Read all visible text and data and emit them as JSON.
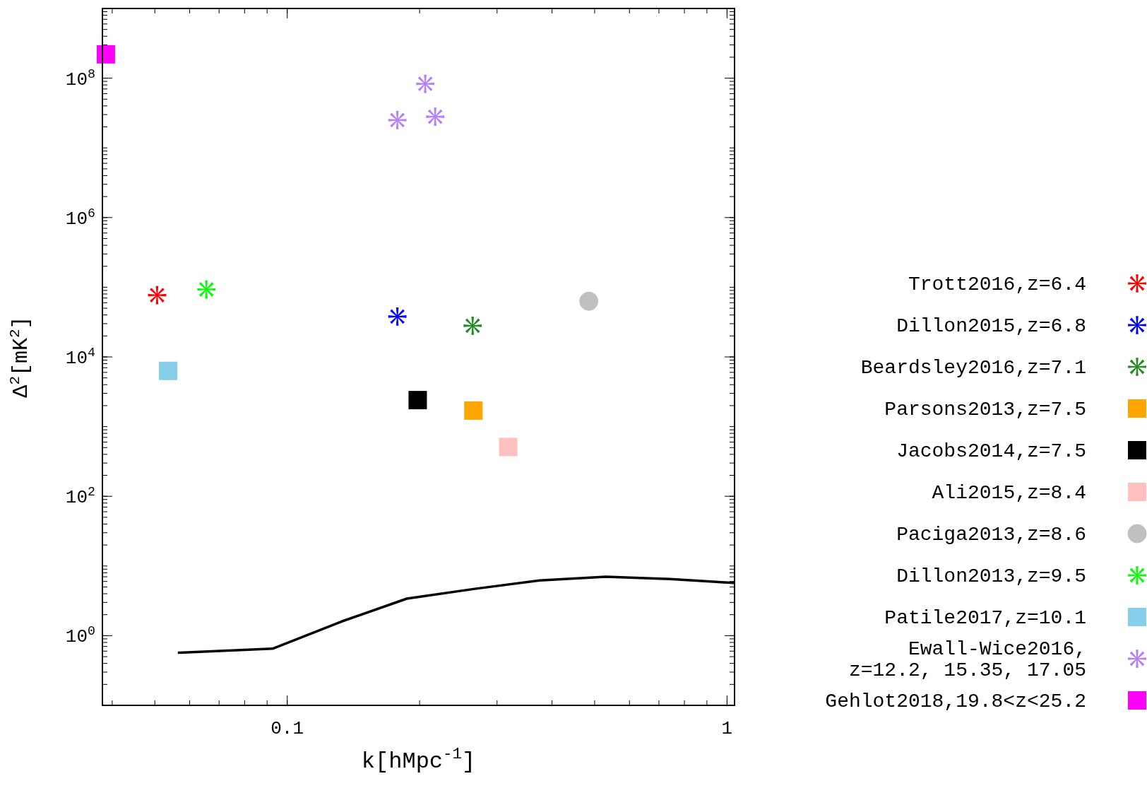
{
  "chart_data": {
    "type": "scatter",
    "xlabel": "k[hMpc$^{-1}$]",
    "ylabel": "Δ$^{2}$[mK$^{2}$]",
    "log": "xy",
    "xlim": [
      0.038,
      1.04
    ],
    "ylim": [
      0.1,
      1000000000
    ],
    "xticks": [
      0.1,
      1
    ],
    "yticks": [
      {
        "value": 1,
        "label": "10$^{0}$"
      },
      {
        "value": 100,
        "label": "10$^{2}$"
      },
      {
        "value": 10000,
        "label": "10$^{4}$"
      },
      {
        "value": 1000000,
        "label": "10$^{6}$"
      },
      {
        "value": 100000000,
        "label": "10$^{8}$"
      }
    ],
    "grid": false,
    "legend": "right",
    "series": [
      {
        "name": "Trott2016,z=6.4",
        "color": "#ff0000",
        "marker": "cross",
        "x": [
          0.0506
        ],
        "values": [
          77000
        ]
      },
      {
        "name": "Dillon2015,z=6.8",
        "color": "#0000ff",
        "marker": "cross",
        "x": [
          0.178
        ],
        "values": [
          38000
        ]
      },
      {
        "name": "Beardsley2016,z=7.1",
        "color": "#228b22",
        "marker": "cross",
        "x": [
          0.264
        ],
        "values": [
          28000
        ]
      },
      {
        "name": "Parsons2013,z=7.5",
        "color": "#ffa500",
        "marker": "square",
        "x": [
          0.265
        ],
        "values": [
          1700
        ]
      },
      {
        "name": "Jacobs2014,z=7.5",
        "color": "#000000",
        "marker": "square",
        "x": [
          0.198
        ],
        "values": [
          2400
        ]
      },
      {
        "name": "Ali2015,z=8.4",
        "color": "#ffc0c0",
        "marker": "square",
        "x": [
          0.318
        ],
        "values": [
          510
        ]
      },
      {
        "name": "Paciga2013,z=8.6",
        "color": "#c0c0c0",
        "marker": "circle",
        "x": [
          0.485
        ],
        "values": [
          63000
        ]
      },
      {
        "name": "Dillon2013,z=9.5",
        "color": "#00ff00",
        "marker": "cross",
        "x": [
          0.0655
        ],
        "values": [
          93000
        ]
      },
      {
        "name": "Patile2017,z=10.1",
        "color": "#87ceeb",
        "marker": "square",
        "x": [
          0.0536
        ],
        "values": [
          6300
        ]
      },
      {
        "name": "Ewall-Wice2016,\nz=12.2, 15.35, 17.05",
        "color": "#b57dff",
        "marker": "cross",
        "x": [
          0.178,
          0.206,
          0.217
        ],
        "values": [
          25000000,
          83000000,
          28000000
        ]
      },
      {
        "name": "Gehlot2018,19.8<z<25.2",
        "color": "#ff00ff",
        "marker": "square",
        "x": [
          0.0387
        ],
        "values": [
          220000000
        ]
      },
      {
        "type": "line",
        "color": "#000000",
        "marker": "none",
        "x": [
          0.0564,
          0.0926,
          0.133,
          0.187,
          0.267,
          0.375,
          0.53,
          0.741,
          1.04
        ],
        "values": [
          0.57,
          0.65,
          1.6,
          3.4,
          4.7,
          6.2,
          7.0,
          6.5,
          5.7
        ]
      }
    ]
  }
}
